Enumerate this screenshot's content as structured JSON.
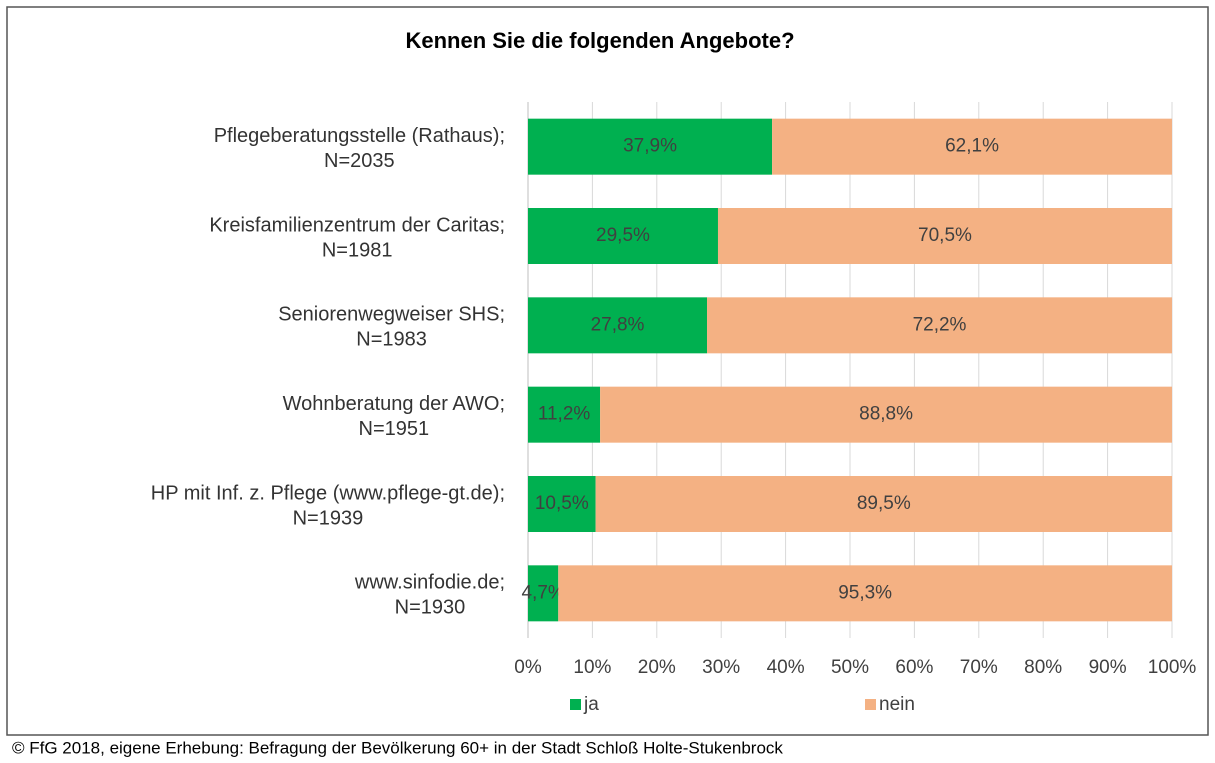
{
  "chart_data": {
    "type": "stacked_bar_horizontal",
    "title": "Kennen Sie die folgenden Angebote?",
    "categories": [
      [
        "Pflegeberatungsstelle (Rathaus);",
        "N=2035"
      ],
      [
        "Kreisfamilienzentrum der Caritas;",
        "N=1981"
      ],
      [
        "Seniorenwegweiser SHS;",
        "N=1983"
      ],
      [
        "Wohnberatung der AWO;",
        "N=1951"
      ],
      [
        "HP mit Inf. z. Pflege (www.pflege-gt.de);",
        "N=1939"
      ],
      [
        "www.sinfodie.de;",
        "N=1930"
      ]
    ],
    "series": [
      {
        "name": "ja",
        "color": "#00b050",
        "values": [
          37.9,
          29.5,
          27.8,
          11.2,
          10.5,
          4.7
        ],
        "value_labels": [
          "37,9%",
          "29,5%",
          "27,8%",
          "11,2%",
          "10,5%",
          "4,7%"
        ]
      },
      {
        "name": "nein",
        "color": "#f4b183",
        "values": [
          62.1,
          70.5,
          72.2,
          88.8,
          89.5,
          95.3
        ],
        "value_labels": [
          "62,1%",
          "70,5%",
          "72,2%",
          "88,8%",
          "89,5%",
          "95,3%"
        ]
      }
    ],
    "xlim": [
      0,
      100
    ],
    "xticks": [
      {
        "value": 0,
        "label": "0%"
      },
      {
        "value": 10,
        "label": "10%"
      },
      {
        "value": 20,
        "label": "20%"
      },
      {
        "value": 30,
        "label": "30%"
      },
      {
        "value": 40,
        "label": "40%"
      },
      {
        "value": 50,
        "label": "50%"
      },
      {
        "value": 60,
        "label": "60%"
      },
      {
        "value": 70,
        "label": "70%"
      },
      {
        "value": 80,
        "label": "80%"
      },
      {
        "value": 90,
        "label": "90%"
      },
      {
        "value": 100,
        "label": "100%"
      }
    ],
    "grid": true,
    "legend": "bottom",
    "source": "© FfG 2018, eigene Erhebung: Befragung der Bevölkerung  60+ in der Stadt Schloß Holte-Stukenbrock"
  }
}
